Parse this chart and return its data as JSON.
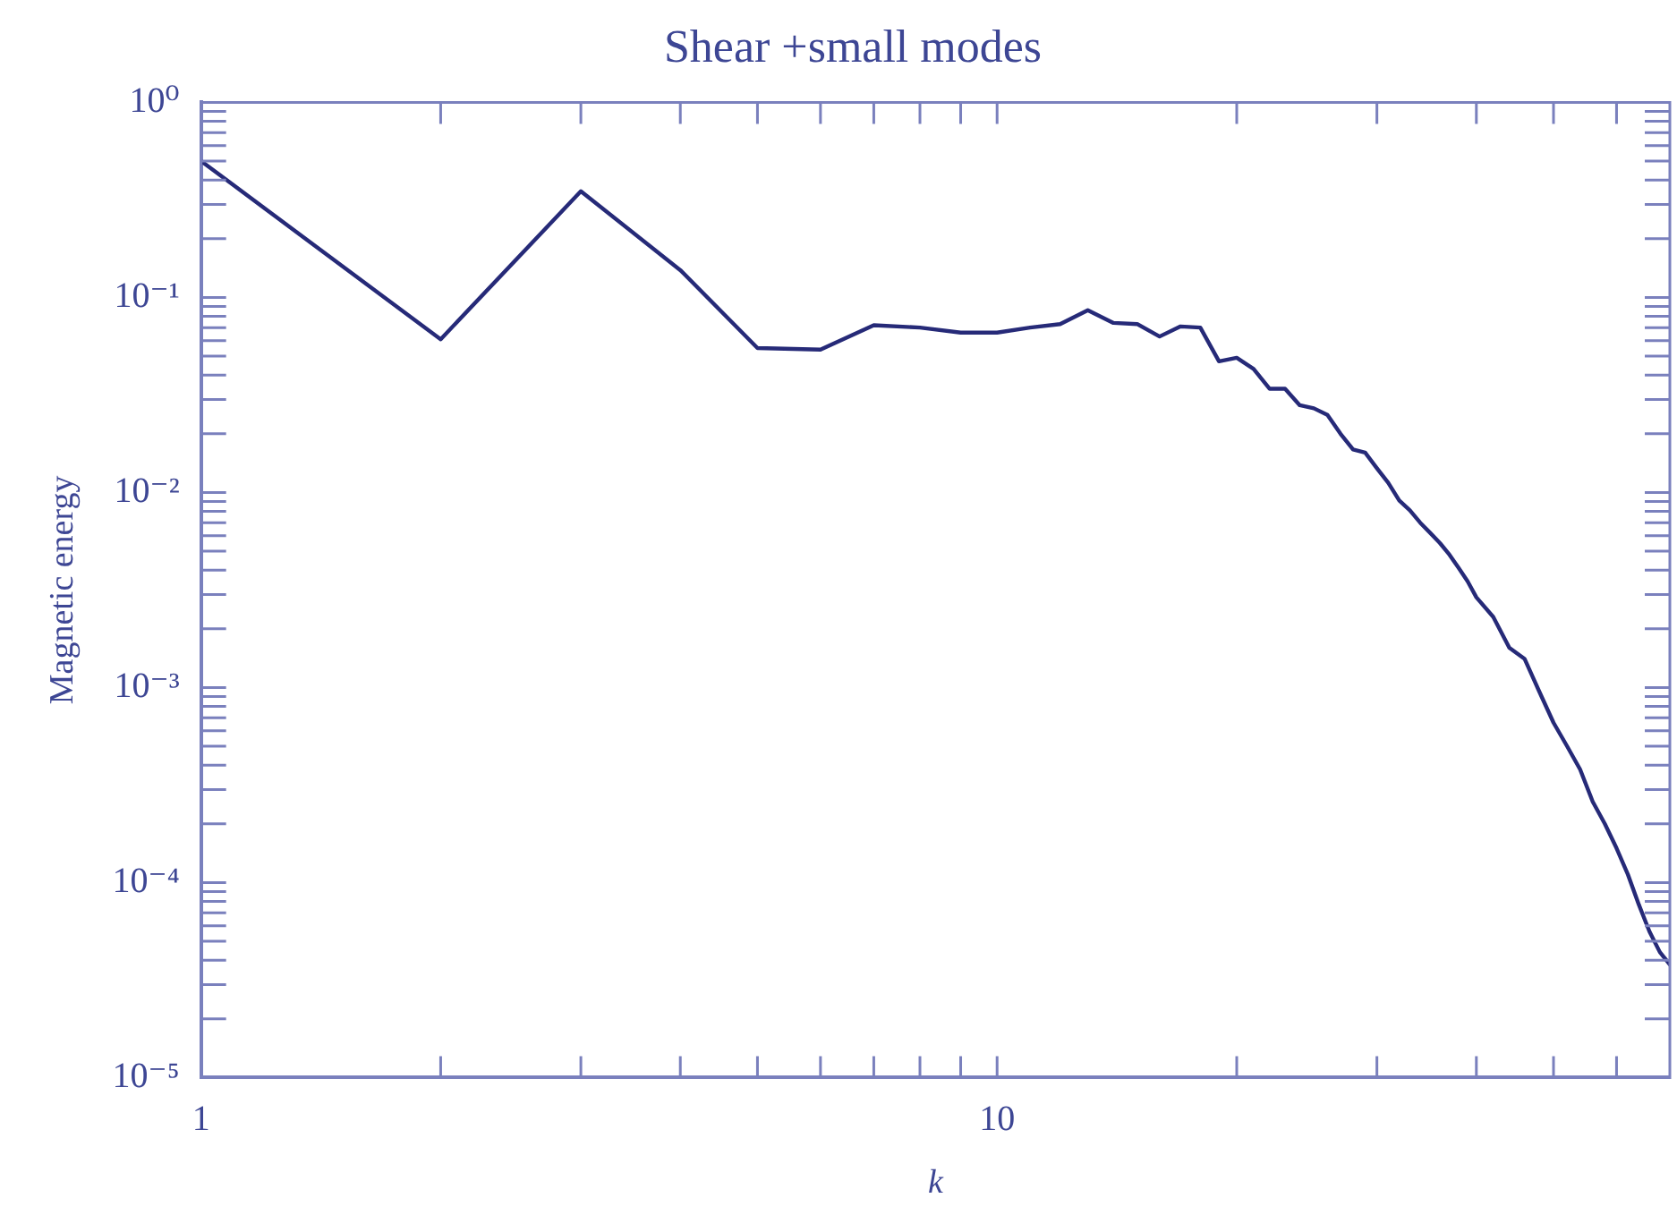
{
  "chart_data": {
    "type": "line",
    "title": "Shear +small modes",
    "xlabel": "k",
    "ylabel": "Magnetic energy",
    "log": "xy",
    "marker": "none",
    "line_style": "solid",
    "xlim": [
      1,
      70
    ],
    "ylim": [
      1e-05,
      1
    ],
    "xticks": [
      {
        "value": 1,
        "label": "1"
      },
      {
        "value": 2,
        "label": null
      },
      {
        "value": 3,
        "label": null
      },
      {
        "value": 4,
        "label": null
      },
      {
        "value": 5,
        "label": null
      },
      {
        "value": 6,
        "label": null
      },
      {
        "value": 7,
        "label": null
      },
      {
        "value": 8,
        "label": null
      },
      {
        "value": 9,
        "label": null
      },
      {
        "value": 10,
        "label": "10"
      },
      {
        "value": 20,
        "label": null
      },
      {
        "value": 30,
        "label": null
      },
      {
        "value": 40,
        "label": null
      },
      {
        "value": 50,
        "label": null
      },
      {
        "value": 60,
        "label": null
      }
    ],
    "yticks": [
      {
        "value": 1e-05,
        "label": "10⁻⁵"
      },
      {
        "value": 2e-05,
        "label": null
      },
      {
        "value": 3e-05,
        "label": null
      },
      {
        "value": 4e-05,
        "label": null
      },
      {
        "value": 5e-05,
        "label": null
      },
      {
        "value": 6e-05,
        "label": null
      },
      {
        "value": 7e-05,
        "label": null
      },
      {
        "value": 8e-05,
        "label": null
      },
      {
        "value": 9e-05,
        "label": null
      },
      {
        "value": 0.0001,
        "label": "10⁻⁴"
      },
      {
        "value": 0.0002,
        "label": null
      },
      {
        "value": 0.0003,
        "label": null
      },
      {
        "value": 0.0004,
        "label": null
      },
      {
        "value": 0.0005,
        "label": null
      },
      {
        "value": 0.0006,
        "label": null
      },
      {
        "value": 0.0007,
        "label": null
      },
      {
        "value": 0.0008,
        "label": null
      },
      {
        "value": 0.0009,
        "label": null
      },
      {
        "value": 0.001,
        "label": "10⁻³"
      },
      {
        "value": 0.002,
        "label": null
      },
      {
        "value": 0.003,
        "label": null
      },
      {
        "value": 0.004,
        "label": null
      },
      {
        "value": 0.005,
        "label": null
      },
      {
        "value": 0.006,
        "label": null
      },
      {
        "value": 0.007,
        "label": null
      },
      {
        "value": 0.008,
        "label": null
      },
      {
        "value": 0.009,
        "label": null
      },
      {
        "value": 0.01,
        "label": "10⁻²"
      },
      {
        "value": 0.02,
        "label": null
      },
      {
        "value": 0.03,
        "label": null
      },
      {
        "value": 0.04,
        "label": null
      },
      {
        "value": 0.05,
        "label": null
      },
      {
        "value": 0.06,
        "label": null
      },
      {
        "value": 0.07,
        "label": null
      },
      {
        "value": 0.08,
        "label": null
      },
      {
        "value": 0.09,
        "label": null
      },
      {
        "value": 0.1,
        "label": "10⁻¹"
      },
      {
        "value": 0.2,
        "label": null
      },
      {
        "value": 0.3,
        "label": null
      },
      {
        "value": 0.4,
        "label": null
      },
      {
        "value": 0.5,
        "label": null
      },
      {
        "value": 0.6,
        "label": null
      },
      {
        "value": 0.7,
        "label": null
      },
      {
        "value": 0.8,
        "label": null
      },
      {
        "value": 0.9,
        "label": null
      },
      {
        "value": 1,
        "label": "10⁰"
      }
    ],
    "x": [
      1,
      2,
      3,
      4,
      5,
      6,
      7,
      8,
      9,
      10,
      11,
      12,
      13,
      14,
      15,
      16,
      17,
      18,
      19,
      20,
      21,
      22,
      23,
      24,
      25,
      26,
      27,
      28,
      29,
      30,
      31,
      32,
      33,
      34,
      35,
      36,
      37,
      38,
      39,
      40,
      42,
      44,
      46,
      48,
      50,
      52,
      54,
      56,
      58,
      60,
      62,
      64,
      66,
      68,
      70
    ],
    "series": [
      {
        "color": "#262a78",
        "values": [
          0.5,
          0.061,
          0.35,
          0.138,
          0.055,
          0.054,
          0.072,
          0.07,
          0.066,
          0.066,
          0.07,
          0.073,
          0.086,
          0.074,
          0.073,
          0.063,
          0.071,
          0.07,
          0.047,
          0.049,
          0.043,
          0.034,
          0.034,
          0.028,
          0.027,
          0.025,
          0.02,
          0.0166,
          0.016,
          0.0133,
          0.0112,
          0.0091,
          0.0081,
          0.007,
          0.0062,
          0.0055,
          0.0048,
          0.0041,
          0.0035,
          0.0029,
          0.0023,
          0.0016,
          0.0014,
          0.00095,
          0.00066,
          0.0005,
          0.00038,
          0.00026,
          0.0002,
          0.00015,
          0.00011,
          7.7e-05,
          5.6e-05,
          4.4e-05,
          3.8e-05
        ]
      }
    ]
  }
}
